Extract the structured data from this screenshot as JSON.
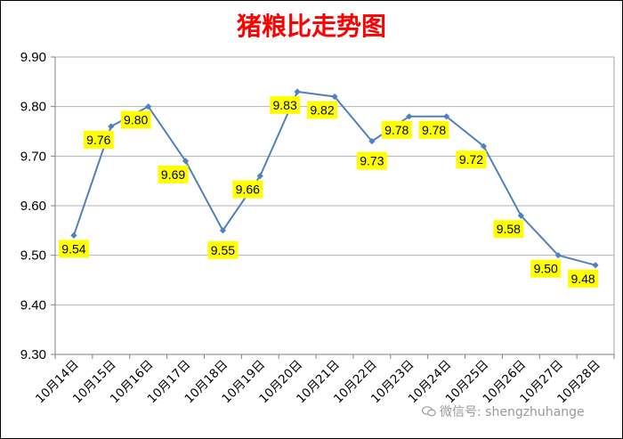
{
  "chart_data": {
    "type": "line",
    "title": "猪粮比走势图",
    "title_color": "#ff0000",
    "categories": [
      "10月14日",
      "10月15日",
      "10月16日",
      "10月17日",
      "10月18日",
      "10月19日",
      "10月20日",
      "10月21日",
      "10月22日",
      "10月23日",
      "10月24日",
      "10月25日",
      "10月26日",
      "10月27日",
      "10月28日"
    ],
    "series": [
      {
        "values": [
          9.54,
          9.76,
          9.8,
          9.69,
          9.55,
          9.66,
          9.83,
          9.82,
          9.73,
          9.78,
          9.78,
          9.72,
          9.58,
          9.5,
          9.48
        ]
      }
    ],
    "data_labels": [
      "9.54",
      "9.76",
      "9.80",
      "9.69",
      "9.55",
      "9.66",
      "9.83",
      "9.82",
      "9.73",
      "9.78",
      "9.78",
      "9.72",
      "9.58",
      "9.50",
      "9.48"
    ],
    "y_ticks": [
      "9.90",
      "9.80",
      "9.70",
      "9.60",
      "9.50",
      "9.40",
      "9.30"
    ],
    "ylim": [
      9.3,
      9.9
    ],
    "grid": true,
    "line_color": "#4f81bd",
    "label_bg_color": "#ffff00"
  },
  "watermark": {
    "text": "微信号: shengzhuhange"
  }
}
